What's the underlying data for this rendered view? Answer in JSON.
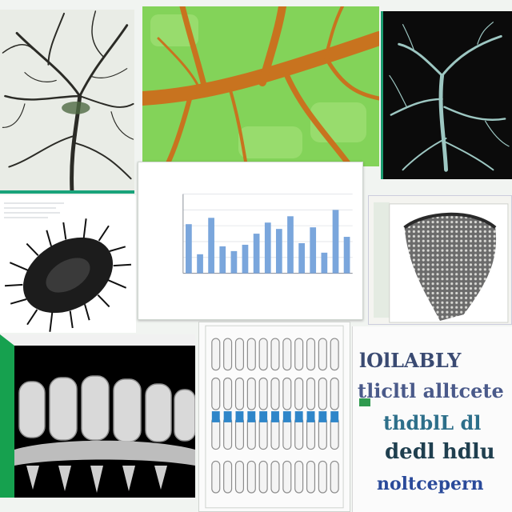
{
  "collage": {
    "tiles": [
      {
        "id": "tree-white",
        "subject": "branching-tree-illustration"
      },
      {
        "id": "leaf",
        "subject": "leaf-vein-macro"
      },
      {
        "id": "tree-dark",
        "subject": "vascular-tree-on-black"
      },
      {
        "id": "urchin",
        "subject": "spiny-organism-sketch"
      },
      {
        "id": "chart",
        "subject": "bar-chart-document"
      },
      {
        "id": "specimen",
        "subject": "textured-specimen-scan"
      },
      {
        "id": "vertebrae",
        "subject": "vertebrae-row-render"
      },
      {
        "id": "teeth",
        "subject": "teeth-rows-diagram"
      },
      {
        "id": "text",
        "subject": "garbled-text-poster"
      }
    ]
  },
  "chart_data": {
    "type": "bar",
    "categories": [
      "",
      "",
      "",
      "",
      "",
      "",
      "",
      "",
      "",
      "",
      "",
      "",
      "",
      "",
      ""
    ],
    "values": [
      31,
      12,
      35,
      17,
      14,
      18,
      25,
      32,
      28,
      36,
      19,
      29,
      13,
      40,
      23
    ],
    "ylim": [
      0,
      50
    ],
    "title": "",
    "xlabel": "",
    "ylabel": "",
    "grid": true,
    "bar_color": "#7aa6dc"
  },
  "text_poster": {
    "lines": [
      "lOlLABLY",
      "tlicltl alltcete",
      "thdblL dl",
      "dedl hdlu",
      "noltcepern"
    ]
  },
  "colors": {
    "accent_green": "#19a37a",
    "leaf_green": "#7dcf52",
    "vein_orange": "#c8731f"
  }
}
